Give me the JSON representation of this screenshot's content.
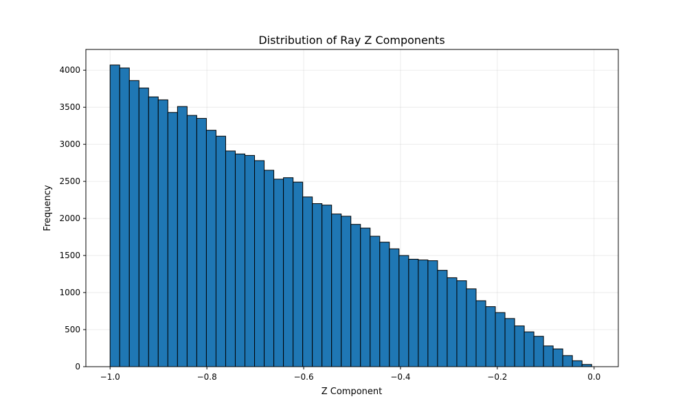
{
  "chart_data": {
    "type": "bar",
    "title": "Distribution of Ray Z Components",
    "xlabel": "Z Component",
    "ylabel": "Frequency",
    "xlim": [
      -1.05,
      0.05
    ],
    "ylim": [
      0,
      4280
    ],
    "x_ticks": [
      -1.0,
      -0.8,
      -0.6,
      -0.4,
      -0.2,
      0.0
    ],
    "x_tick_labels": [
      "−1.0",
      "−0.8",
      "−0.6",
      "−0.4",
      "−0.2",
      "0.0"
    ],
    "y_ticks": [
      0,
      500,
      1000,
      1500,
      2000,
      2500,
      3000,
      3500,
      4000
    ],
    "y_tick_labels": [
      "0",
      "500",
      "1000",
      "1500",
      "2000",
      "2500",
      "3000",
      "3500",
      "4000"
    ],
    "grid": true,
    "bar_color": "#1f77b4",
    "edge_color": "#000000",
    "bin_start": -1.0,
    "bin_end": -0.005,
    "values": [
      4070,
      4030,
      3860,
      3760,
      3640,
      3600,
      3430,
      3510,
      3390,
      3350,
      3190,
      3110,
      2910,
      2870,
      2850,
      2780,
      2650,
      2530,
      2550,
      2490,
      2290,
      2200,
      2180,
      2060,
      2030,
      1920,
      1870,
      1760,
      1680,
      1590,
      1500,
      1450,
      1440,
      1430,
      1300,
      1200,
      1160,
      1050,
      890,
      810,
      730,
      650,
      550,
      470,
      410,
      280,
      240,
      150,
      80,
      30
    ]
  }
}
